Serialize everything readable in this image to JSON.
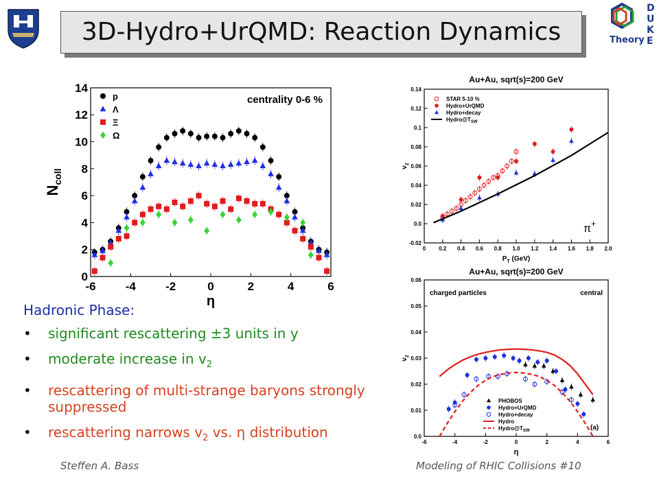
{
  "title": "3D-Hydro+UrQMD: Reaction Dynamics",
  "logo": {
    "line1": "Theory",
    "letters": [
      "D",
      "U",
      "K",
      "E"
    ]
  },
  "body": {
    "heading": "Hadronic Phase:",
    "items": [
      {
        "text": "significant rescattering ±3 units in y"
      },
      {
        "text": "moderate increase in v",
        "sub": "2"
      },
      {
        "text": "rescattering of multi-strange baryons strongly suppressed"
      },
      {
        "text": "rescattering narrows v",
        "sub": "2",
        "tail": " vs. η distribution"
      }
    ]
  },
  "footer": {
    "left": "Steffen A. Bass",
    "right": "Modeling of RHIC Collisions  #10"
  },
  "colors": {
    "green_text": "#1f8a1f",
    "red_text": "#d6401f",
    "heading": "#1a2ea3"
  },
  "chart_data": [
    {
      "type": "scatter",
      "annotation": "centrality 0-6 %",
      "xlabel": "η",
      "ylabel": "N",
      "ylabel_sub": "coll",
      "xlim": [
        -6,
        6
      ],
      "ylim": [
        0,
        14
      ],
      "xticks": [
        -6,
        -4,
        -2,
        0,
        2,
        4,
        6
      ],
      "yticks": [
        0,
        2,
        4,
        6,
        8,
        10,
        12,
        14
      ],
      "legend": "top-left",
      "series": [
        {
          "name": "p",
          "color": "#000000",
          "marker": "circle",
          "x": [
            -5.8,
            -5.4,
            -5.0,
            -4.6,
            -4.2,
            -3.8,
            -3.4,
            -3.0,
            -2.6,
            -2.2,
            -1.8,
            -1.4,
            -1.0,
            -0.6,
            -0.2,
            0.2,
            0.6,
            1.0,
            1.4,
            1.8,
            2.2,
            2.6,
            3.0,
            3.4,
            3.8,
            4.2,
            4.6,
            5.0,
            5.4,
            5.8
          ],
          "y": [
            1.8,
            2.0,
            2.6,
            3.6,
            4.8,
            6.0,
            7.4,
            8.6,
            9.6,
            10.3,
            10.6,
            10.8,
            10.6,
            10.3,
            10.4,
            10.4,
            10.3,
            10.6,
            10.8,
            10.6,
            10.3,
            9.6,
            8.6,
            7.4,
            6.0,
            4.8,
            3.6,
            2.6,
            2.0,
            1.8
          ]
        },
        {
          "name": "Λ",
          "color": "#1c2fe0",
          "marker": "triangle",
          "x": [
            -5.8,
            -5.4,
            -5.0,
            -4.6,
            -4.2,
            -3.8,
            -3.4,
            -3.0,
            -2.6,
            -2.2,
            -1.8,
            -1.4,
            -1.0,
            -0.6,
            -0.2,
            0.2,
            0.6,
            1.0,
            1.4,
            1.8,
            2.2,
            2.6,
            3.0,
            3.4,
            3.8,
            4.2,
            4.6,
            5.0,
            5.4,
            5.8
          ],
          "y": [
            1.6,
            1.9,
            2.5,
            3.4,
            4.4,
            5.6,
            6.6,
            7.6,
            8.2,
            8.6,
            8.5,
            8.4,
            8.3,
            8.2,
            8.4,
            8.3,
            8.2,
            8.3,
            8.4,
            8.5,
            8.6,
            8.2,
            7.6,
            6.6,
            5.6,
            4.4,
            3.4,
            2.5,
            1.9,
            1.6
          ]
        },
        {
          "name": "Ξ",
          "color": "#e01c1c",
          "marker": "square",
          "x": [
            -5.8,
            -5.4,
            -5.0,
            -4.6,
            -4.2,
            -3.8,
            -3.4,
            -3.0,
            -2.6,
            -2.2,
            -1.8,
            -1.4,
            -1.0,
            -0.6,
            -0.2,
            0.2,
            0.6,
            1.0,
            1.4,
            1.8,
            2.2,
            2.6,
            3.0,
            3.4,
            3.8,
            4.2,
            4.6,
            5.0,
            5.4,
            5.8
          ],
          "y": [
            0.4,
            1.4,
            2.2,
            2.8,
            3.0,
            4.0,
            4.6,
            5.0,
            5.2,
            5.0,
            5.5,
            5.2,
            5.6,
            6.0,
            5.4,
            5.2,
            5.6,
            5.0,
            5.8,
            5.6,
            5.4,
            5.4,
            5.0,
            4.6,
            4.0,
            3.4,
            2.8,
            2.2,
            1.4,
            0.4
          ]
        },
        {
          "name": "Ω",
          "color": "#3ad23a",
          "marker": "diamond",
          "x": [
            -5.0,
            -4.2,
            -3.4,
            -2.6,
            -1.8,
            -1.0,
            -0.2,
            0.6,
            1.4,
            2.2,
            3.0,
            3.8,
            4.6,
            5.0
          ],
          "y": [
            1.0,
            3.6,
            4.0,
            4.6,
            4.0,
            4.2,
            3.4,
            4.6,
            4.2,
            4.6,
            4.8,
            4.4,
            4.0,
            1.6
          ]
        }
      ]
    },
    {
      "type": "scatter",
      "title": "Au+Au, sqrt(s)=200 GeV",
      "xlabel": "P",
      "xlabel_sub": "T",
      "xlabel_tail": " (GeV)",
      "ylabel": "v",
      "ylabel_sub": "2",
      "annotation": "π",
      "annotation_sup": "+",
      "xlim": [
        0,
        2.0
      ],
      "ylim": [
        -0.02,
        0.14
      ],
      "xticks": [
        0,
        0.2,
        0.4,
        0.6,
        0.8,
        1.0,
        1.2,
        1.4,
        1.6,
        1.8,
        2.0
      ],
      "xtick_labels": [
        "0",
        "0.2",
        "0.4",
        "0.6",
        "0.8",
        "1.0",
        "1.2",
        "1.4",
        "1.6",
        "1.8",
        "2.0"
      ],
      "yticks": [
        -0.02,
        0,
        0.02,
        0.04,
        0.06,
        0.08,
        0.1,
        0.12,
        0.14
      ],
      "ytick_labels": [
        "-0.02",
        "0.0",
        "0.02",
        "0.04",
        "0.06",
        "0.08",
        "0.1",
        "0.12",
        "0.14"
      ],
      "legend": "top-left",
      "series": [
        {
          "name": "STAR 5-10 %",
          "color": "#e01c1c",
          "marker": "open-circle",
          "x": [
            0.2,
            0.25,
            0.3,
            0.35,
            0.4,
            0.45,
            0.5,
            0.55,
            0.6,
            0.65,
            0.7,
            0.75,
            0.8,
            0.85,
            0.9,
            0.95,
            1.0
          ],
          "y": [
            0.006,
            0.01,
            0.013,
            0.016,
            0.02,
            0.024,
            0.028,
            0.032,
            0.036,
            0.04,
            0.044,
            0.048,
            0.05,
            0.055,
            0.06,
            0.065,
            0.075
          ]
        },
        {
          "name": "Hydro+UrQMD",
          "color": "#e01c1c",
          "marker": "circle",
          "x": [
            0.2,
            0.4,
            0.6,
            0.8,
            1.0,
            1.2,
            1.4,
            1.6
          ],
          "y": [
            0.008,
            0.025,
            0.048,
            0.048,
            0.065,
            0.083,
            0.075,
            0.098
          ]
        },
        {
          "name": "Hydro+decay",
          "color": "#1c2fe0",
          "marker": "triangle",
          "x": [
            0.2,
            0.4,
            0.6,
            0.8,
            1.0,
            1.2,
            1.4,
            1.6
          ],
          "y": [
            0.004,
            0.016,
            0.027,
            0.031,
            0.053,
            0.052,
            0.066,
            0.086
          ]
        },
        {
          "name": "Hydro@T",
          "name_sub": "SW",
          "color": "#000000",
          "marker": "line",
          "x": [
            0.1,
            0.4,
            0.8,
            1.2,
            1.6,
            2.0
          ],
          "y": [
            0.001,
            0.013,
            0.031,
            0.05,
            0.071,
            0.095
          ]
        }
      ]
    },
    {
      "type": "scatter",
      "title": "Au+Au, sqrt(s)=200 GeV",
      "annotation_left": "charged particles",
      "annotation_right": "central",
      "annotation_panel": "(a)",
      "xlabel": "η",
      "ylabel": "v",
      "ylabel_sub": "2",
      "xlim": [
        -6,
        6
      ],
      "ylim": [
        0,
        0.06
      ],
      "xticks": [
        -6,
        -4,
        -2,
        0,
        2,
        4,
        6
      ],
      "yticks": [
        0,
        0.01,
        0.02,
        0.03,
        0.04,
        0.05,
        0.06
      ],
      "ytick_labels": [
        "0.0",
        "0.01",
        "0.02",
        "0.03",
        "0.04",
        "0.05",
        "0.06"
      ],
      "legend": "bottom-center",
      "series": [
        {
          "name": "PHOBOS",
          "color": "#000000",
          "marker": "triangle",
          "x": [
            0.6,
            1.2,
            1.8,
            2.4,
            3.0,
            3.6,
            4.2,
            5.0
          ],
          "y": [
            0.0275,
            0.027,
            0.027,
            0.025,
            0.0215,
            0.019,
            0.016,
            0.014
          ]
        },
        {
          "name": "Hydro+UrQMD",
          "color": "#1c2fe0",
          "marker": "circle",
          "x": [
            -4.4,
            -4.0,
            -3.2,
            -2.6,
            -2.0,
            -1.4,
            -0.8,
            -0.2,
            0.2,
            0.8,
            1.4,
            2.0,
            2.6,
            3.2,
            4.0,
            4.4
          ],
          "y": [
            0.0105,
            0.013,
            0.0235,
            0.0295,
            0.03,
            0.0305,
            0.031,
            0.03,
            0.029,
            0.03,
            0.0285,
            0.029,
            0.025,
            0.018,
            0.0125,
            0.0085
          ]
        },
        {
          "name": "Hydro+decay",
          "color": "#1c2fe0",
          "marker": "open-circle",
          "x": [
            -4.0,
            -3.4,
            -2.6,
            -1.8,
            -1.2,
            -0.6,
            0.6,
            1.2,
            2.0,
            3.0,
            3.6
          ],
          "y": [
            0.012,
            0.016,
            0.022,
            0.023,
            0.023,
            0.024,
            0.022,
            0.02,
            0.021,
            0.017,
            0.014
          ]
        },
        {
          "name": "Hydro",
          "color": "#e01c1c",
          "marker": "line",
          "x": [
            -5.0,
            -4.5,
            -4.0,
            -3.5,
            -3.0,
            -2.5,
            -2.0,
            -1.5,
            -1.0,
            -0.5,
            0,
            0.5,
            1.0,
            1.5,
            2.0,
            2.5,
            3.0,
            3.5,
            4.0,
            4.5,
            5.0
          ],
          "y": [
            0.023,
            0.0255,
            0.0275,
            0.0292,
            0.0305,
            0.0315,
            0.0322,
            0.0328,
            0.0332,
            0.0334,
            0.0335,
            0.0334,
            0.0332,
            0.0328,
            0.0322,
            0.0312,
            0.0295,
            0.0272,
            0.024,
            0.02,
            0.016
          ]
        },
        {
          "name": "Hydro@T",
          "name_sub": "SW",
          "color": "#e01c1c",
          "marker": "dashed",
          "x": [
            -5.0,
            -4.5,
            -4.0,
            -3.5,
            -3.0,
            -2.5,
            -2.0,
            -1.5,
            -1.0,
            -0.5,
            0,
            0.5,
            1.0,
            1.5,
            2.0,
            2.5,
            3.0,
            3.5,
            4.0,
            4.5,
            5.0
          ],
          "y": [
            0.0,
            0.005,
            0.0095,
            0.0135,
            0.0168,
            0.0195,
            0.0215,
            0.023,
            0.0238,
            0.0243,
            0.0245,
            0.0243,
            0.0238,
            0.023,
            0.0215,
            0.0195,
            0.0168,
            0.0135,
            0.0095,
            0.005,
            0.0
          ]
        }
      ]
    }
  ]
}
